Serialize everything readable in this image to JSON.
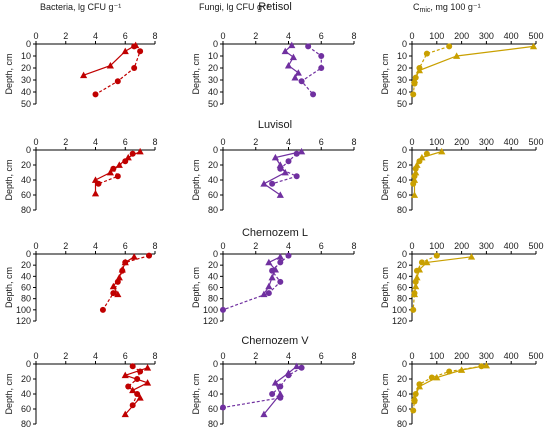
{
  "colors": {
    "bacteria": "#c00000",
    "fungi": "#7030a0",
    "cmic": "#c9a000"
  },
  "column_headers": {
    "bacteria": "Bacteria, lg CFU g⁻¹",
    "fungi": "Fungi, lg CFU g⁻¹",
    "cmic_main": "C",
    "cmic_sub": "mic",
    "cmic_rest": ", mg 100 g⁻¹"
  },
  "axis_titles": {
    "depth": "Depth, cm"
  },
  "chart_data": [
    {
      "soil": "Retisol",
      "ylim": [
        0,
        50
      ],
      "yticks": [
        0,
        10,
        20,
        30,
        40,
        50
      ],
      "bacteria": {
        "type": "line",
        "xlim": [
          0,
          8
        ],
        "xticks": [
          0,
          2,
          4,
          6,
          8
        ],
        "series": [
          {
            "marker": "circle",
            "dash": true,
            "x": [
              6.6,
              7.0,
              6.6,
              5.5,
              4.0
            ],
            "y": [
              2,
              6,
              20,
              31,
              42
            ]
          },
          {
            "marker": "triangle",
            "dash": false,
            "x": [
              6.7,
              6.0,
              5.0,
              3.2
            ],
            "y": [
              1,
              6,
              18,
              26
            ]
          }
        ]
      },
      "fungi": {
        "type": "line",
        "xlim": [
          0,
          8
        ],
        "xticks": [
          0,
          2,
          4,
          6,
          8
        ],
        "series": [
          {
            "marker": "circle",
            "dash": true,
            "x": [
              5.2,
              6.0,
              6.0,
              4.8,
              5.5
            ],
            "y": [
              2,
              10,
              20,
              31,
              42
            ]
          },
          {
            "marker": "triangle",
            "dash": false,
            "x": [
              4.2,
              3.8,
              4.3,
              4.0,
              4.6,
              4.4
            ],
            "y": [
              1,
              6,
              11,
              18,
              24,
              28
            ]
          }
        ]
      },
      "cmic": {
        "type": "line",
        "xlim": [
          0,
          500
        ],
        "xticks": [
          0,
          100,
          200,
          300,
          400,
          500
        ],
        "series": [
          {
            "marker": "circle",
            "dash": true,
            "x": [
              150,
              60,
              30,
              15,
              10,
              5
            ],
            "y": [
              2,
              8,
              20,
              28,
              33,
              42
            ]
          },
          {
            "marker": "triangle",
            "dash": false,
            "x": [
              490,
              180,
              30,
              10
            ],
            "y": [
              2,
              10,
              22,
              30
            ]
          }
        ]
      }
    },
    {
      "soil": "Luvisol",
      "ylim": [
        0,
        80
      ],
      "yticks": [
        0,
        20,
        40,
        60,
        80
      ],
      "bacteria": {
        "type": "line",
        "xlim": [
          0,
          8
        ],
        "xticks": [
          0,
          2,
          4,
          6,
          8
        ],
        "series": [
          {
            "marker": "circle",
            "dash": true,
            "x": [
              6.5,
              6.0,
              5.2,
              5.5,
              4.2
            ],
            "y": [
              5,
              15,
              25,
              35,
              45
            ]
          },
          {
            "marker": "triangle",
            "dash": false,
            "x": [
              7.0,
              6.2,
              5.6,
              5.0,
              4.0,
              4.0
            ],
            "y": [
              2,
              10,
              20,
              30,
              40,
              58
            ]
          }
        ]
      },
      "fungi": {
        "type": "line",
        "xlim": [
          0,
          8
        ],
        "xticks": [
          0,
          2,
          4,
          6,
          8
        ],
        "series": [
          {
            "marker": "circle",
            "dash": true,
            "x": [
              4.5,
              4.0,
              3.5,
              4.5,
              3.0
            ],
            "y": [
              5,
              15,
              25,
              35,
              45
            ]
          },
          {
            "marker": "triangle",
            "dash": false,
            "x": [
              4.8,
              3.2,
              3.5,
              3.8,
              2.5,
              3.5
            ],
            "y": [
              2,
              10,
              20,
              30,
              45,
              60
            ]
          }
        ]
      },
      "cmic": {
        "type": "line",
        "xlim": [
          0,
          500
        ],
        "xticks": [
          0,
          100,
          200,
          300,
          400,
          500
        ],
        "series": [
          {
            "marker": "circle",
            "dash": true,
            "x": [
              60,
              30,
              15,
              10,
              5
            ],
            "y": [
              5,
              15,
              25,
              35,
              45
            ]
          },
          {
            "marker": "triangle",
            "dash": false,
            "x": [
              120,
              40,
              20,
              15,
              10,
              10
            ],
            "y": [
              2,
              10,
              20,
              30,
              40,
              60
            ]
          }
        ]
      }
    },
    {
      "soil": "Chernozem L",
      "ylim": [
        0,
        120
      ],
      "yticks": [
        0,
        20,
        40,
        60,
        80,
        100,
        120
      ],
      "bacteria": {
        "type": "line",
        "xlim": [
          0,
          8
        ],
        "xticks": [
          0,
          2,
          4,
          6,
          8
        ],
        "series": [
          {
            "marker": "circle",
            "dash": true,
            "x": [
              7.6,
              6.0,
              5.8,
              5.5,
              5.2,
              4.5
            ],
            "y": [
              3,
              15,
              30,
              50,
              70,
              100
            ]
          },
          {
            "marker": "triangle",
            "dash": false,
            "x": [
              6.6,
              6.0,
              5.8,
              5.6,
              5.2,
              5.5
            ],
            "y": [
              5,
              15,
              28,
              42,
              58,
              72
            ]
          }
        ]
      },
      "fungi": {
        "type": "line",
        "xlim": [
          0,
          8
        ],
        "xticks": [
          0,
          2,
          4,
          6,
          8
        ],
        "series": [
          {
            "marker": "circle",
            "dash": true,
            "x": [
              4.0,
              3.5,
              3.0,
              3.5,
              2.8,
              0.0
            ],
            "y": [
              3,
              15,
              30,
              50,
              70,
              100
            ]
          },
          {
            "marker": "triangle",
            "dash": false,
            "x": [
              3.5,
              2.8,
              3.2,
              3.0,
              2.8,
              2.5
            ],
            "y": [
              5,
              15,
              28,
              42,
              58,
              72
            ]
          }
        ]
      },
      "cmic": {
        "type": "line",
        "xlim": [
          0,
          500
        ],
        "xticks": [
          0,
          100,
          200,
          300,
          400,
          500
        ],
        "series": [
          {
            "marker": "circle",
            "dash": true,
            "x": [
              100,
              40,
              20,
              15,
              10,
              5
            ],
            "y": [
              3,
              15,
              30,
              50,
              70,
              100
            ]
          },
          {
            "marker": "triangle",
            "dash": false,
            "x": [
              240,
              60,
              30,
              20,
              15,
              10
            ],
            "y": [
              5,
              15,
              28,
              42,
              58,
              72
            ]
          }
        ]
      }
    },
    {
      "soil": "Chernozem V",
      "ylim": [
        0,
        80
      ],
      "yticks": [
        0,
        20,
        40,
        60,
        80
      ],
      "bacteria": {
        "type": "line",
        "xlim": [
          0,
          8
        ],
        "xticks": [
          0,
          2,
          4,
          6,
          8
        ],
        "series": [
          {
            "marker": "circle",
            "dash": true,
            "x": [
              6.5,
              7.0,
              6.8,
              6.2,
              6.8,
              6.5
            ],
            "y": [
              3,
              10,
              20,
              30,
              40,
              55
            ]
          },
          {
            "marker": "triangle",
            "dash": false,
            "x": [
              7.5,
              6.0,
              7.5,
              6.5,
              7.0,
              6.0
            ],
            "y": [
              5,
              15,
              25,
              35,
              45,
              67
            ]
          }
        ]
      },
      "fungi": {
        "type": "line",
        "xlim": [
          0,
          8
        ],
        "xticks": [
          0,
          2,
          4,
          6,
          8
        ],
        "series": [
          {
            "marker": "circle",
            "dash": true,
            "x": [
              4.8,
              4.0,
              3.5,
              3.0,
              3.5,
              0.0
            ],
            "y": [
              5,
              15,
              30,
              40,
              45,
              58
            ]
          },
          {
            "marker": "triangle",
            "dash": false,
            "x": [
              4.5,
              4.0,
              3.2,
              3.5,
              2.5
            ],
            "y": [
              3,
              12,
              25,
              40,
              67
            ]
          }
        ]
      },
      "cmic": {
        "type": "line",
        "xlim": [
          0,
          500
        ],
        "xticks": [
          0,
          100,
          200,
          300,
          400,
          500
        ],
        "series": [
          {
            "marker": "circle",
            "dash": true,
            "x": [
              280,
              150,
              80,
              30,
              15,
              10,
              5
            ],
            "y": [
              3,
              10,
              18,
              27,
              40,
              50,
              62
            ]
          },
          {
            "marker": "triangle",
            "dash": false,
            "x": [
              300,
              200,
              100,
              30,
              10
            ],
            "y": [
              2,
              8,
              18,
              30,
              45
            ]
          }
        ]
      }
    }
  ]
}
